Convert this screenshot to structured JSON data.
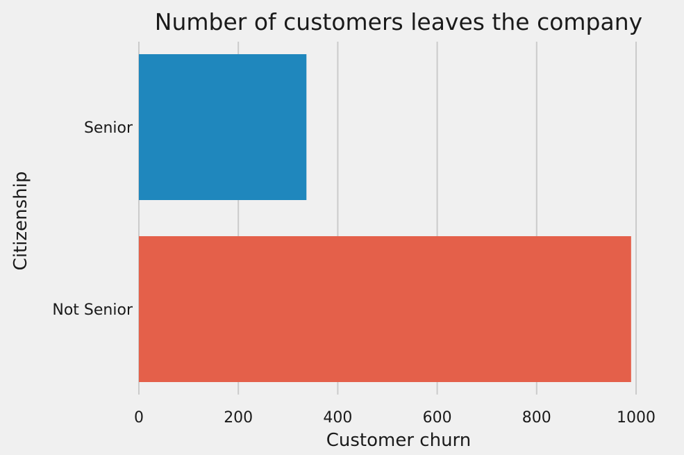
{
  "chart_data": {
    "type": "bar",
    "orientation": "horizontal",
    "title": "Number of customers leaves the company",
    "xlabel": "Customer churn",
    "ylabel": "Citizenship",
    "categories": [
      "Senior",
      "Not Senior"
    ],
    "values": [
      337,
      990
    ],
    "colors": [
      "#1f87bd",
      "#e4604a"
    ],
    "xlim": [
      0,
      1040
    ],
    "xticks": [
      0,
      200,
      400,
      600,
      800,
      1000
    ],
    "grid": true,
    "background": "#f0f0f0",
    "grid_color": "#cbcbcb"
  }
}
